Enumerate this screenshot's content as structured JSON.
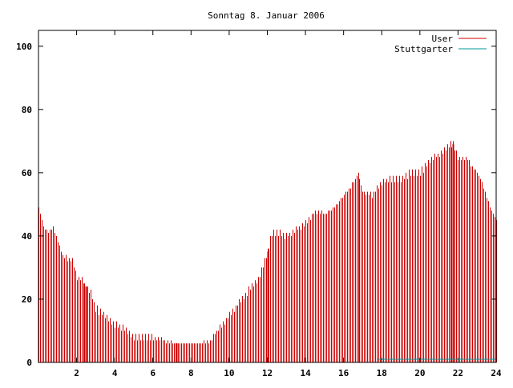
{
  "chart_data": {
    "type": "bar",
    "title": "Sonntag 8. Januar 2006",
    "xlabel": "",
    "ylabel": "",
    "xlim": [
      0,
      24
    ],
    "ylim": [
      0,
      105
    ],
    "grid": false,
    "legend_position": "top-right",
    "x_ticks": [
      "2",
      "4",
      "6",
      "8",
      "10",
      "12",
      "14",
      "16",
      "18",
      "20",
      "22",
      "24"
    ],
    "y_ticks": [
      "0",
      "20",
      "40",
      "60",
      "80",
      "100"
    ],
    "series": [
      {
        "name": "User",
        "color": "#cc0000",
        "anchors": [
          [
            0,
            49
          ],
          [
            0.25,
            43
          ],
          [
            0.5,
            41
          ],
          [
            0.75,
            43
          ],
          [
            1.0,
            38
          ],
          [
            1.25,
            34
          ],
          [
            1.5,
            33
          ],
          [
            1.75,
            32
          ],
          [
            2.0,
            27
          ],
          [
            2.25,
            26
          ],
          [
            2.5,
            24
          ],
          [
            2.75,
            22
          ],
          [
            3.0,
            17
          ],
          [
            3.5,
            15
          ],
          [
            4.0,
            12
          ],
          [
            4.5,
            11
          ],
          [
            5.0,
            8
          ],
          [
            5.5,
            8
          ],
          [
            6.0,
            8
          ],
          [
            6.5,
            7
          ],
          [
            7.0,
            6
          ],
          [
            7.5,
            6
          ],
          [
            8.0,
            6
          ],
          [
            8.5,
            6
          ],
          [
            9.0,
            7
          ],
          [
            9.5,
            11
          ],
          [
            10.0,
            15
          ],
          [
            10.5,
            19
          ],
          [
            11.0,
            23
          ],
          [
            11.5,
            26
          ],
          [
            12.0,
            35
          ],
          [
            12.25,
            41
          ],
          [
            12.5,
            41
          ],
          [
            13.0,
            40
          ],
          [
            13.5,
            42
          ],
          [
            14.0,
            44
          ],
          [
            14.5,
            48
          ],
          [
            15.0,
            47
          ],
          [
            15.5,
            49
          ],
          [
            16.0,
            53
          ],
          [
            16.5,
            57
          ],
          [
            16.75,
            60
          ],
          [
            17.0,
            54
          ],
          [
            17.5,
            53
          ],
          [
            18.0,
            57
          ],
          [
            18.5,
            58
          ],
          [
            19.0,
            58
          ],
          [
            19.5,
            60
          ],
          [
            20.0,
            60
          ],
          [
            20.5,
            64
          ],
          [
            21.0,
            66
          ],
          [
            21.5,
            69
          ],
          [
            21.75,
            69
          ],
          [
            22.0,
            65
          ],
          [
            22.5,
            64
          ],
          [
            23.0,
            60
          ],
          [
            23.25,
            57
          ],
          [
            23.5,
            52
          ],
          [
            23.75,
            48
          ],
          [
            24.0,
            45
          ]
        ],
        "highlight_x": [
          2.5,
          7.25,
          12.0,
          21.75
        ]
      },
      {
        "name": "Stuttgarter",
        "color": "#009999",
        "segment": {
          "from": 17.75,
          "to": 24,
          "value": 1
        }
      }
    ]
  }
}
